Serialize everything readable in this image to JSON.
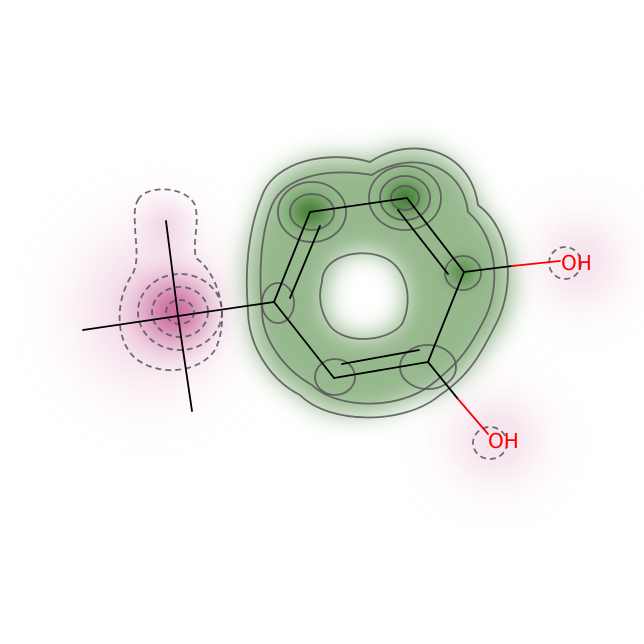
{
  "molecule": {
    "atom_labels": [
      {
        "id": "oh-upper",
        "text": "OH"
      },
      {
        "id": "oh-lower",
        "text": "OH"
      }
    ]
  },
  "colors": {
    "bond": "#000000",
    "heteroatom": "#ff0000",
    "positive_map": "#2e6b1f",
    "negative_map": "#b0266f",
    "contour": "#555555"
  }
}
